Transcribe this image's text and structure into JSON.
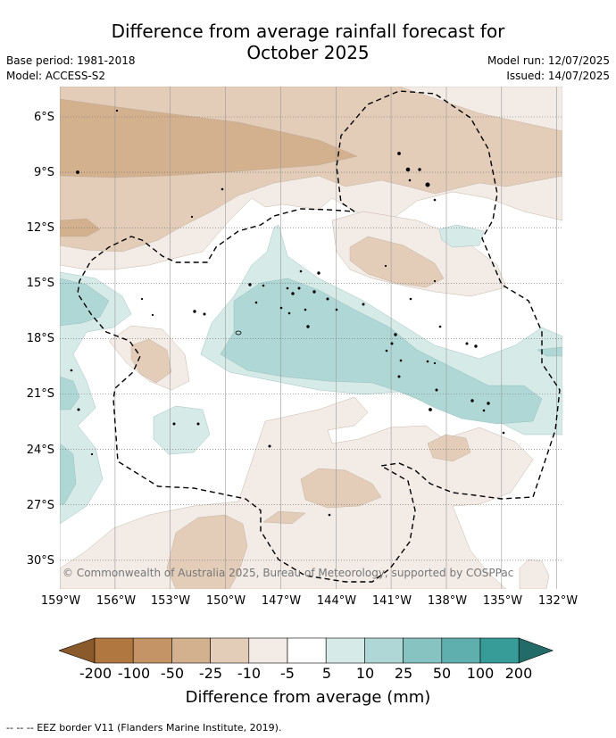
{
  "title": {
    "line1": "Difference from average rainfall forecast for",
    "line2": "October 2025"
  },
  "meta": {
    "base_period": "Base period: 1981-2018",
    "model": "Model: ACCESS-S2",
    "model_run": "Model run: 12/07/2025",
    "issued": "Issued: 14/07/2025"
  },
  "map": {
    "lat_labels": [
      "6°S",
      "9°S",
      "12°S",
      "15°S",
      "18°S",
      "21°S",
      "24°S",
      "27°S",
      "30°S"
    ],
    "lon_labels": [
      "159°W",
      "156°W",
      "153°W",
      "150°W",
      "147°W",
      "144°W",
      "141°W",
      "138°W",
      "135°W",
      "132°W"
    ],
    "copyright": "© Commonwealth of Australia 2025, Bureau of Meteorology, supported by COSPPac"
  },
  "colorbar": {
    "title": "Difference from average (mm)",
    "tick_labels": [
      "-200",
      "-100",
      "-50",
      "-25",
      "-10",
      "-5",
      "5",
      "10",
      "25",
      "50",
      "100",
      "200"
    ],
    "colors": [
      "#b07840",
      "#c49466",
      "#d3b08e",
      "#e3cdb9",
      "#f3ebe5",
      "#ffffff",
      "#d6eae8",
      "#aed7d5",
      "#86c3c1",
      "#5eafad",
      "#379b98",
      "#2a7c79"
    ],
    "low_extend_color": "#8b5a2b",
    "high_extend_color": "#236b68"
  },
  "footer": {
    "legend_text": "--  --  -- EEZ border V11 (Flanders Marine Institute, 2019)."
  }
}
